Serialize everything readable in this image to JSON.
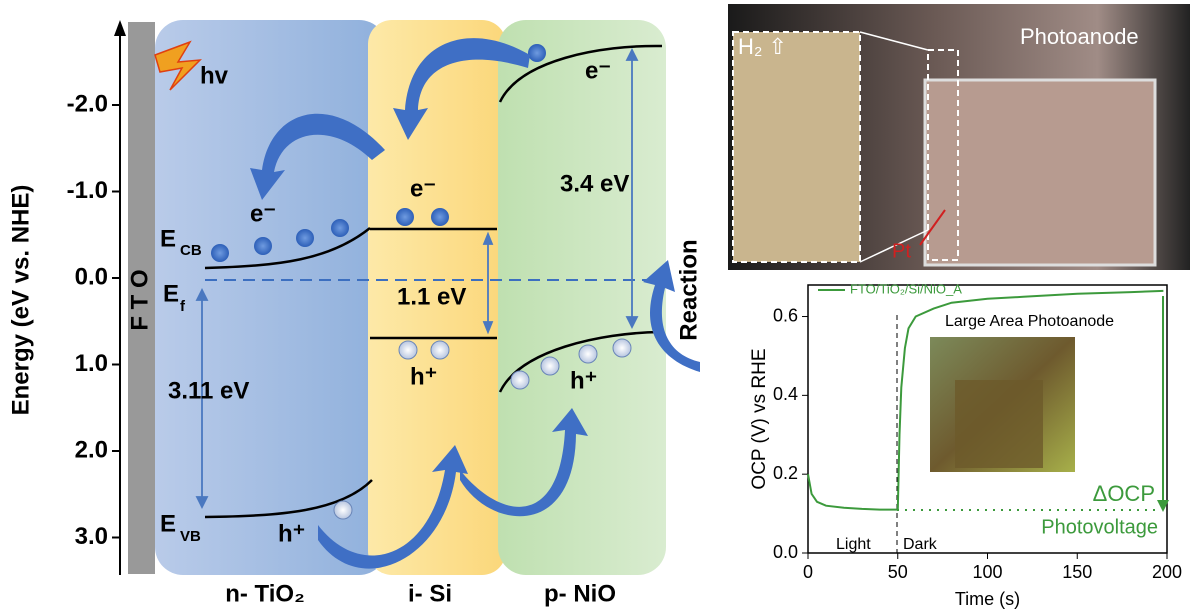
{
  "diagram": {
    "axis_label": "Energy (eV vs. NHE)",
    "yticks": [
      {
        "value": -2,
        "label": "-2.0"
      },
      {
        "value": -1,
        "label": "-1.0"
      },
      {
        "value": 0,
        "label": "0.0"
      },
      {
        "value": 1,
        "label": "1.0"
      },
      {
        "value": 2,
        "label": "2.0"
      },
      {
        "value": 3,
        "label": "3.0"
      }
    ],
    "electrode": "F T O",
    "layers": [
      "n- TiO₂",
      "i- Si",
      "p- NiO"
    ],
    "hv": "hv",
    "ecb": "E",
    "ecb_sub": "CB",
    "ef": "E",
    "ef_sub": "f",
    "evb": "E",
    "evb_sub": "VB",
    "gaps": [
      "3.11 eV",
      "1.1 eV",
      "3.4 eV"
    ],
    "electrons": [
      "e⁻",
      "e⁻",
      "e⁻"
    ],
    "holes": [
      "h⁺",
      "h⁺",
      "h⁺"
    ],
    "reaction": "Reaction"
  },
  "photo": {
    "labels": [
      "H₂ ⇧",
      "Photoanode",
      "Pt"
    ]
  },
  "chart_data": {
    "type": "line",
    "xlabel": "Time (s)",
    "ylabel": "OCP (V) vs RHE",
    "xlim": [
      0,
      200
    ],
    "ylim": [
      0,
      0.68
    ],
    "xticks": [
      0,
      50,
      100,
      150,
      200
    ],
    "yticks": [
      {
        "value": 0,
        "label": "0.0"
      },
      0.2,
      0.4,
      0.6
    ],
    "x": [
      0,
      2,
      5,
      10,
      20,
      30,
      40,
      50,
      51,
      52,
      54,
      56,
      60,
      70,
      80,
      100,
      120,
      150,
      180,
      198
    ],
    "series": [
      {
        "name": "FTO/TiO₂/Si/NiO_A",
        "color": "#3c9a3c",
        "values": [
          0.2,
          0.15,
          0.13,
          0.12,
          0.115,
          0.112,
          0.11,
          0.11,
          0.3,
          0.42,
          0.52,
          0.57,
          0.6,
          0.62,
          0.635,
          0.645,
          0.65,
          0.658,
          0.662,
          0.665
        ]
      }
    ],
    "annotations": [
      "Light",
      "Dark",
      "Large Area Photoanode",
      "ΔOCP",
      "Photovoltage"
    ]
  }
}
